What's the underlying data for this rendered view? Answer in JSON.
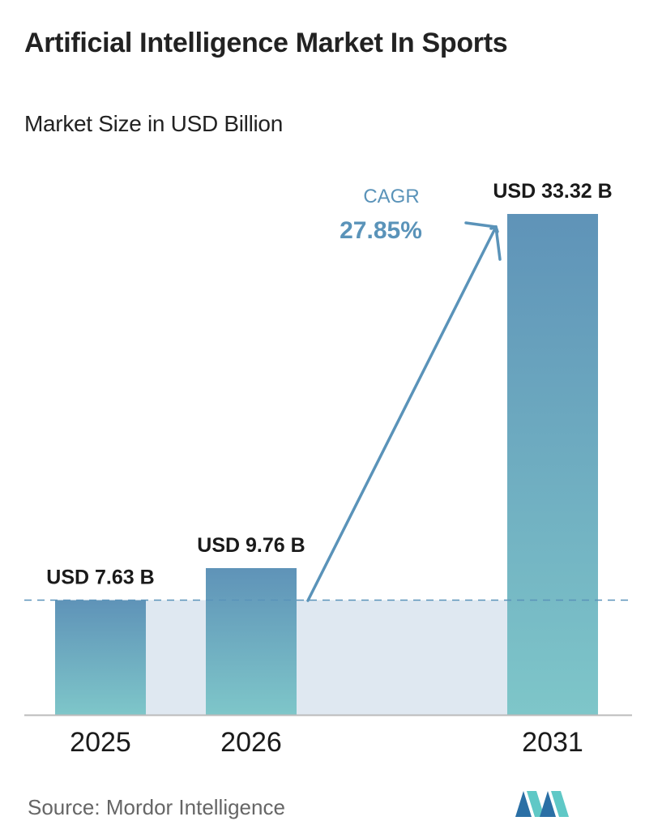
{
  "header": {
    "title": "Artificial Intelligence Market In Sports",
    "subtitle": "Market Size in USD Billion"
  },
  "chart_data": {
    "type": "bar",
    "categories": [
      "2025",
      "2026",
      "2031"
    ],
    "values": [
      7.63,
      9.76,
      33.32
    ],
    "value_labels": [
      "USD 7.63 B",
      "USD 9.76 B",
      "USD 33.32 B"
    ],
    "ylim": [
      0,
      33.32
    ],
    "grid": false,
    "reference_line": 7.63,
    "cagr": {
      "label": "CAGR",
      "value": "27.85%"
    },
    "colors": {
      "bar_top": "#5f93b8",
      "bar_bottom": "#7ec6c9",
      "band": "#dfe8f1",
      "arrow": "#5a93b9",
      "cagr_text": "#5a93b9",
      "axis": "#bbbbbb"
    }
  },
  "footer": {
    "source": "Source:  Mordor Intelligence",
    "logo_colors": [
      "#2a6fa5",
      "#5fc8c6"
    ]
  }
}
